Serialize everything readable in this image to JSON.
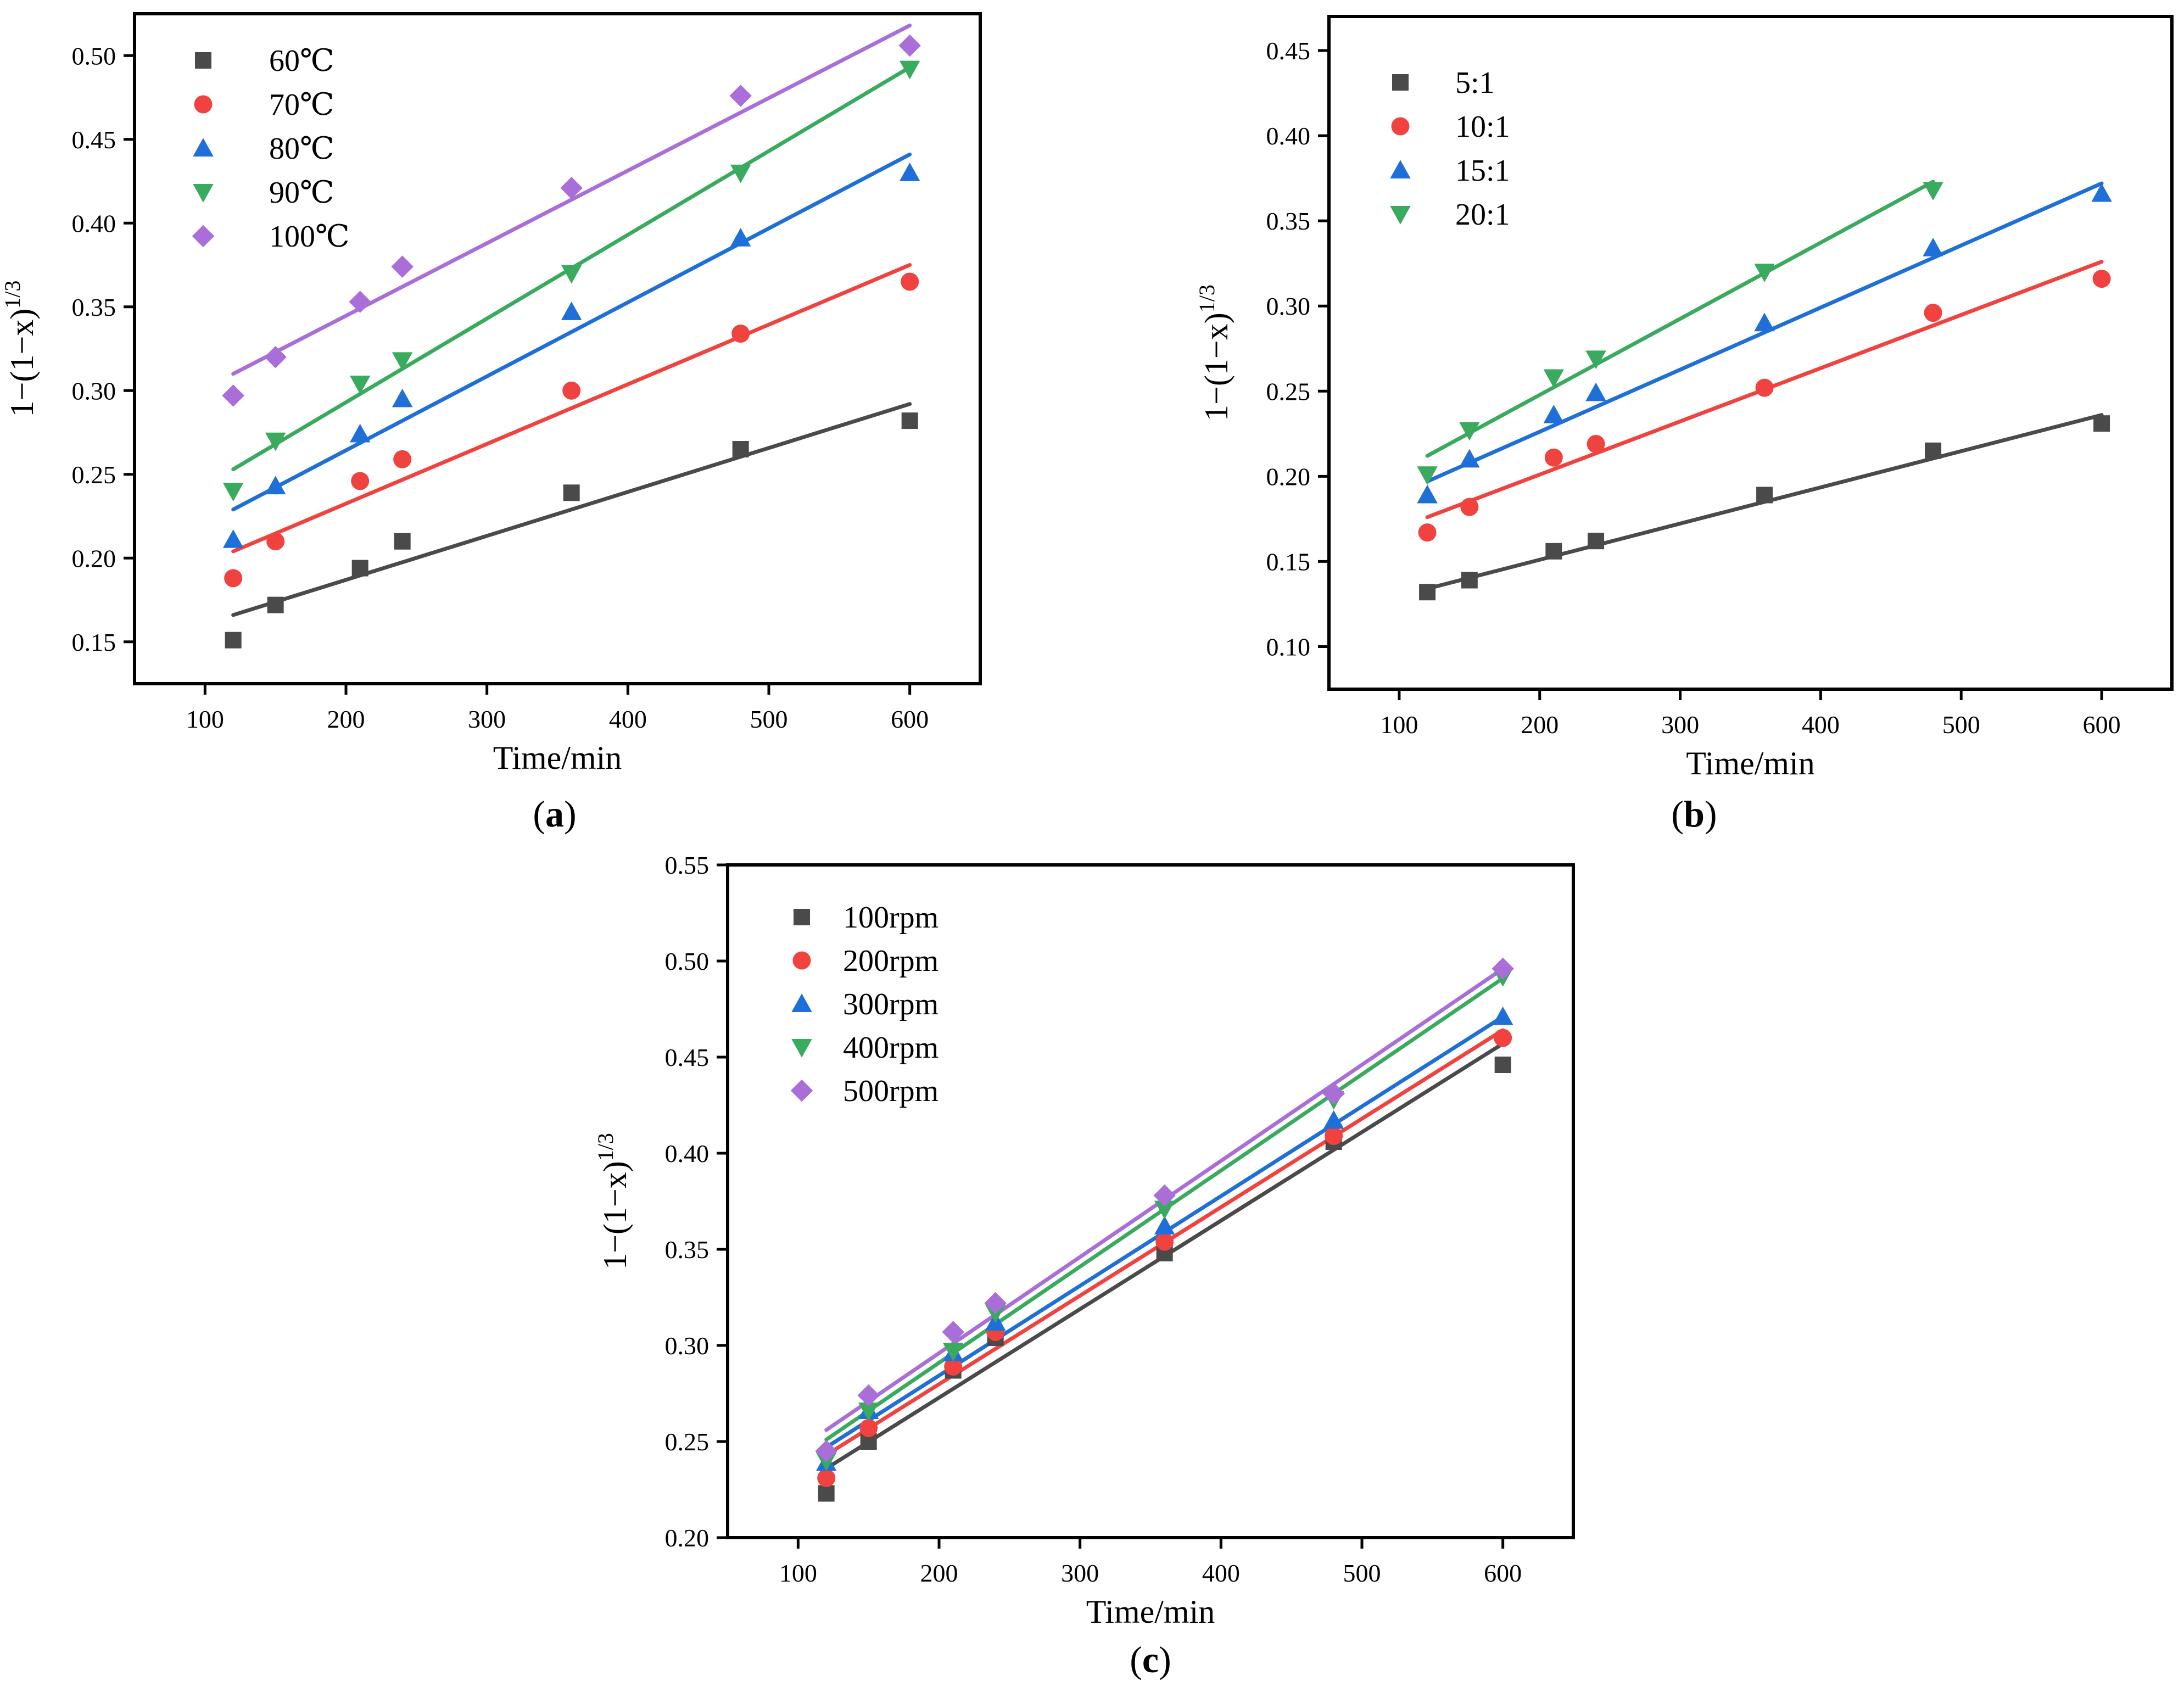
{
  "chart_data": [
    {
      "type": "scatter",
      "panel_label": "a",
      "xlabel": "Time/min",
      "ylabel_main": "1−(1−x)",
      "ylabel_sup": "1/3",
      "xlim": [
        50,
        650
      ],
      "ylim": [
        0.125,
        0.525
      ],
      "xticks": [
        "100",
        "200",
        "300",
        "400",
        "500",
        "600"
      ],
      "yticks": [
        "0.15",
        "0.20",
        "0.25",
        "0.30",
        "0.35",
        "0.40",
        "0.45",
        "0.50"
      ],
      "legend_position": "top-left",
      "x": [
        120,
        150,
        210,
        240,
        360,
        480,
        600
      ],
      "series": [
        {
          "name": "60℃",
          "color": "#4a4a4a",
          "marker": "square",
          "values": [
            0.151,
            0.172,
            0.194,
            0.21,
            0.239,
            0.265,
            0.282
          ],
          "fit": [
            0.166,
            0.292
          ]
        },
        {
          "name": "70℃",
          "color": "#f0433f",
          "marker": "circle",
          "values": [
            0.188,
            0.21,
            0.246,
            0.259,
            0.3,
            0.334,
            0.365
          ],
          "fit": [
            0.204,
            0.375
          ]
        },
        {
          "name": "80℃",
          "color": "#1f6fd8",
          "marker": "triangle-up",
          "values": [
            0.211,
            0.243,
            0.274,
            0.295,
            0.347,
            0.391,
            0.43
          ],
          "fit": [
            0.229,
            0.441
          ]
        },
        {
          "name": "90℃",
          "color": "#3aaa5f",
          "marker": "triangle-down",
          "values": [
            0.24,
            0.27,
            0.304,
            0.318,
            0.37,
            0.43,
            0.492
          ],
          "fit": [
            0.253,
            0.493
          ]
        },
        {
          "name": "100℃",
          "color": "#a96ed8",
          "marker": "diamond",
          "values": [
            0.297,
            0.32,
            0.353,
            0.374,
            0.421,
            0.476,
            0.506
          ],
          "fit": [
            0.31,
            0.518
          ]
        }
      ]
    },
    {
      "type": "scatter",
      "panel_label": "b",
      "xlabel": "Time/min",
      "ylabel_main": "1−(1−x)",
      "ylabel_sup": "1/3",
      "xlim": [
        50,
        650
      ],
      "ylim": [
        0.075,
        0.47
      ],
      "xticks": [
        "100",
        "200",
        "300",
        "400",
        "500",
        "600"
      ],
      "yticks": [
        "0.10",
        "0.15",
        "0.20",
        "0.25",
        "0.30",
        "0.35",
        "0.40",
        "0.45"
      ],
      "legend_position": "top-left",
      "x": [
        120,
        150,
        210,
        240,
        360,
        480,
        600
      ],
      "series": [
        {
          "name": "5:1",
          "color": "#4a4a4a",
          "marker": "square",
          "values": [
            0.132,
            0.139,
            0.156,
            0.162,
            0.189,
            0.215,
            0.231
          ],
          "fit": [
            0.134,
            0.236
          ]
        },
        {
          "name": "10:1",
          "color": "#f0433f",
          "marker": "circle",
          "values": [
            0.167,
            0.182,
            0.211,
            0.219,
            0.252,
            0.296,
            0.316
          ],
          "fit": [
            0.176,
            0.326
          ]
        },
        {
          "name": "15:1",
          "color": "#1f6fd8",
          "marker": "triangle-up",
          "values": [
            0.189,
            0.21,
            0.236,
            0.249,
            0.29,
            0.334,
            0.366
          ],
          "fit": [
            0.197,
            0.372
          ]
        },
        {
          "name": "20:1",
          "color": "#3aaa5f",
          "marker": "triangle-down",
          "values": [
            0.201,
            0.227,
            0.258,
            0.269,
            0.32,
            0.368
          ],
          "x_end": 480,
          "fit": [
            0.212,
            0.373
          ]
        }
      ]
    },
    {
      "type": "scatter",
      "panel_label": "c",
      "xlabel": "Time/min",
      "ylabel_main": "1−(1−x)",
      "ylabel_sup": "1/3",
      "xlim": [
        50,
        650
      ],
      "ylim": [
        0.2,
        0.55
      ],
      "xticks": [
        "100",
        "200",
        "300",
        "400",
        "500",
        "600"
      ],
      "yticks": [
        "0.20",
        "0.25",
        "0.30",
        "0.35",
        "0.40",
        "0.45",
        "0.50",
        "0.55"
      ],
      "legend_position": "top-left",
      "x": [
        120,
        150,
        210,
        240,
        360,
        480,
        600
      ],
      "series": [
        {
          "name": "100rpm",
          "color": "#4a4a4a",
          "marker": "square",
          "values": [
            0.223,
            0.25,
            0.287,
            0.304,
            0.348,
            0.406,
            0.446
          ],
          "fit": [
            0.236,
            0.457
          ]
        },
        {
          "name": "200rpm",
          "color": "#f0433f",
          "marker": "circle",
          "values": [
            0.231,
            0.257,
            0.289,
            0.307,
            0.354,
            0.409,
            0.46
          ],
          "fit": [
            0.243,
            0.464
          ]
        },
        {
          "name": "300rpm",
          "color": "#1f6fd8",
          "marker": "triangle-up",
          "values": [
            0.239,
            0.266,
            0.296,
            0.312,
            0.362,
            0.417,
            0.471
          ],
          "fit": [
            0.247,
            0.471
          ]
        },
        {
          "name": "400rpm",
          "color": "#3aaa5f",
          "marker": "triangle-down",
          "values": [
            0.24,
            0.266,
            0.297,
            0.317,
            0.371,
            0.428,
            0.492
          ],
          "fit": [
            0.251,
            0.491
          ]
        },
        {
          "name": "500rpm",
          "color": "#a96ed8",
          "marker": "diamond",
          "values": [
            0.245,
            0.274,
            0.307,
            0.322,
            0.378,
            0.431,
            0.496
          ],
          "fit": [
            0.256,
            0.496
          ]
        }
      ]
    }
  ]
}
